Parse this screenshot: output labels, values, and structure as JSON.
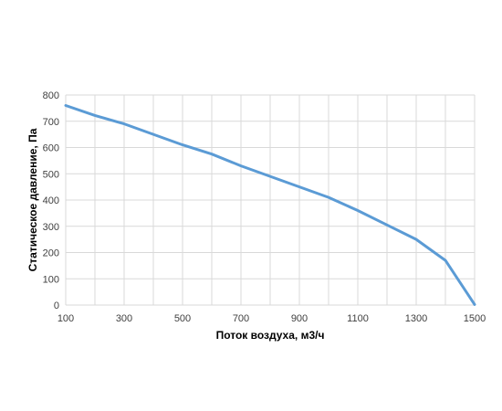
{
  "chart_data": {
    "type": "line",
    "title": "",
    "xlabel": "Поток воздуха, м3/ч",
    "ylabel": "Статическое давление, Па",
    "xlim": [
      100,
      1500
    ],
    "ylim": [
      0,
      800
    ],
    "x_ticks": [
      100,
      300,
      500,
      700,
      900,
      1100,
      1300,
      1500
    ],
    "y_ticks": [
      0,
      100,
      200,
      300,
      400,
      500,
      600,
      700,
      800
    ],
    "x_gridlines": [
      100,
      200,
      300,
      400,
      500,
      600,
      700,
      800,
      900,
      1000,
      1100,
      1200,
      1300,
      1400,
      1500
    ],
    "grid": true,
    "legend": "none",
    "line_color": "#5b9bd5",
    "grid_color": "#d9d9d9",
    "series": [
      {
        "x": [
          100,
          200,
          300,
          400,
          500,
          600,
          700,
          800,
          900,
          1000,
          1100,
          1200,
          1300,
          1400,
          1500
        ],
        "y": [
          760,
          722,
          690,
          650,
          610,
          575,
          530,
          490,
          450,
          410,
          360,
          305,
          250,
          170,
          2
        ]
      }
    ]
  }
}
